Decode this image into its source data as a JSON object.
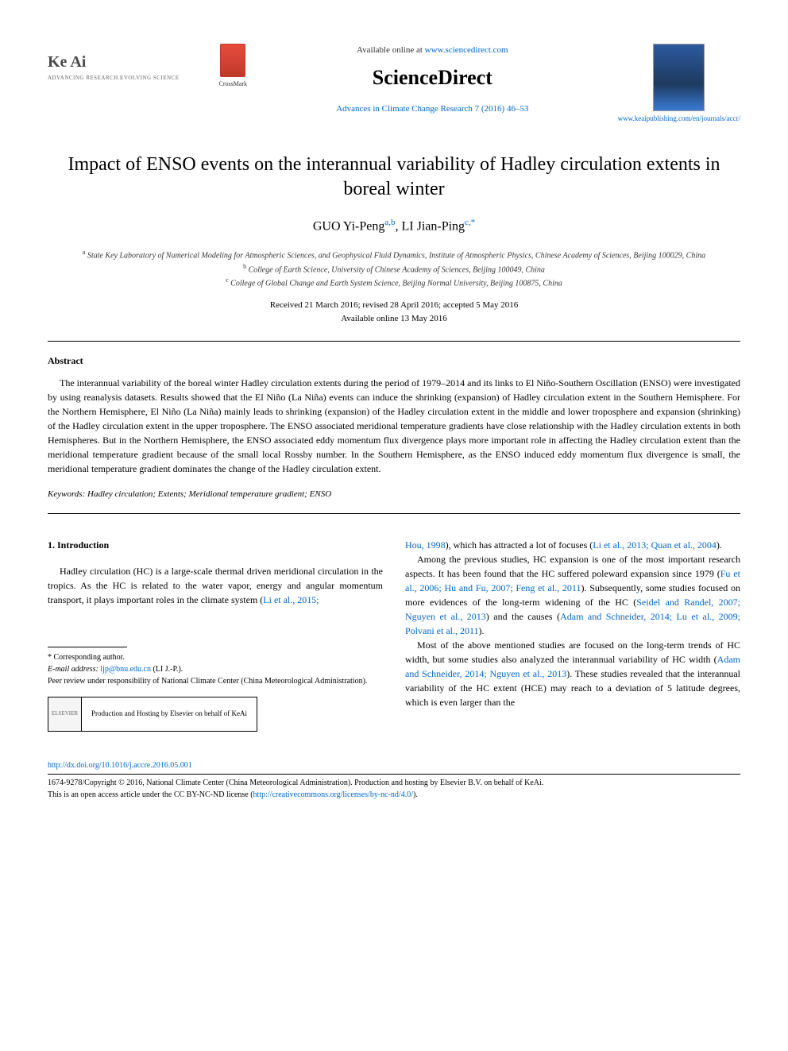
{
  "header": {
    "keai_name": "Ke Ai",
    "keai_tagline": "ADVANCING RESEARCH EVOLVING SCIENCE",
    "crossmark_label": "CrossMark",
    "available_prefix": "Available online at ",
    "available_url": "www.sciencedirect.com",
    "sciencedirect": "ScienceDirect",
    "journal_ref": "Advances in Climate Change Research 7 (2016) 46–53",
    "journal_url": "www.keaipublishing.com/en/journals/accr/"
  },
  "title": "Impact of ENSO events on the interannual variability of Hadley circulation extents in boreal winter",
  "authors": {
    "a1_name": "GUO Yi-Peng",
    "a1_sup": "a,b",
    "a2_name": "LI Jian-Ping",
    "a2_sup": "c,*"
  },
  "affiliations": {
    "a_sup": "a",
    "a_text": "State Key Laboratory of Numerical Modeling for Atmospheric Sciences, and Geophysical Fluid Dynamics, Institute of Atmospheric Physics, Chinese Academy of Sciences, Beijing 100029, China",
    "b_sup": "b",
    "b_text": "College of Earth Science, University of Chinese Academy of Sciences, Beijing 100049, China",
    "c_sup": "c",
    "c_text": "College of Global Change and Earth System Science, Beijing Normal University, Beijing 100875, China"
  },
  "dates": {
    "line1": "Received 21 March 2016; revised 28 April 2016; accepted 5 May 2016",
    "line2": "Available online 13 May 2016"
  },
  "abstract": {
    "heading": "Abstract",
    "text": "The interannual variability of the boreal winter Hadley circulation extents during the period of 1979–2014 and its links to El Niño-Southern Oscillation (ENSO) were investigated by using reanalysis datasets. Results showed that the El Niño (La Niña) events can induce the shrinking (expansion) of Hadley circulation extent in the Southern Hemisphere. For the Northern Hemisphere, El Niño (La Niña) mainly leads to shrinking (expansion) of the Hadley circulation extent in the middle and lower troposphere and expansion (shrinking) of the Hadley circulation extent in the upper troposphere. The ENSO associated meridional temperature gradients have close relationship with the Hadley circulation extents in both Hemispheres. But in the Northern Hemisphere, the ENSO associated eddy momentum flux divergence plays more important role in affecting the Hadley circulation extent than the meridional temperature gradient because of the small local Rossby number. In the Southern Hemisphere, as the ENSO induced eddy momentum flux divergence is small, the meridional temperature gradient dominates the change of the Hadley circulation extent."
  },
  "keywords": {
    "label": "Keywords:",
    "text": " Hadley circulation; Extents; Meridional temperature gradient; ENSO"
  },
  "intro": {
    "heading": "1. Introduction",
    "p1_a": "Hadley circulation (HC) is a large-scale thermal driven meridional circulation in the tropics. As the HC is related to the water vapor, energy and angular momentum transport, it plays important roles in the climate system (",
    "p1_ref1": "Li et al., 2015; ",
    "p1_ref2": "Hou, 1998",
    "p1_b": "), which has attracted a lot of focuses (",
    "p1_ref3": "Li et al., 2013; Quan et al., 2004",
    "p1_c": ").",
    "p2_a": "Among the previous studies, HC expansion is one of the most important research aspects. It has been found that the HC suffered poleward expansion since 1979 (",
    "p2_ref1": "Fu et al., 2006; Hu and Fu, 2007; Feng et al., 2011",
    "p2_b": "). Subsequently, some studies focused on more evidences of the long-term widening of the HC (",
    "p2_ref2": "Seidel and Randel, 2007; Nguyen et al., 2013",
    "p2_c": ") and the causes (",
    "p2_ref3": "Adam and Schneider, 2014; Lu et al., 2009; Polvani et al., 2011",
    "p2_d": ").",
    "p3_a": "Most of the above mentioned studies are focused on the long-term trends of HC width, but some studies also analyzed the interannual variability of HC width (",
    "p3_ref1": "Adam and Schneider, 2014; Nguyen et al., 2013",
    "p3_b": "). These studies revealed that the interannual variability of the HC extent (HCE) may reach to a deviation of 5 latitude degrees, which is even larger than the"
  },
  "footnotes": {
    "corr": "* Corresponding author.",
    "email_label": "E-mail address:",
    "email": " ljp@bnu.edu.cn",
    "email_suffix": " (LI J.-P.).",
    "peer": "Peer review under responsibility of National Climate Center (China Meteorological Administration).",
    "elsevier": "ELSEVIER",
    "hosting": "Production and Hosting by Elsevier on behalf of KeAi"
  },
  "footer": {
    "doi": "http://dx.doi.org/10.1016/j.accre.2016.05.001",
    "copyright_a": "1674-9278/Copyright © 2016, National Climate Center (China Meteorological Administration). Production and hosting by Elsevier B.V. on behalf of KeAi.",
    "copyright_b": "This is an open access article under the CC BY-NC-ND license (",
    "license_url": "http://creativecommons.org/licenses/by-nc-nd/4.0/",
    "copyright_c": ")."
  },
  "colors": {
    "link": "#0066cc",
    "text": "#000000",
    "bg": "#ffffff"
  }
}
